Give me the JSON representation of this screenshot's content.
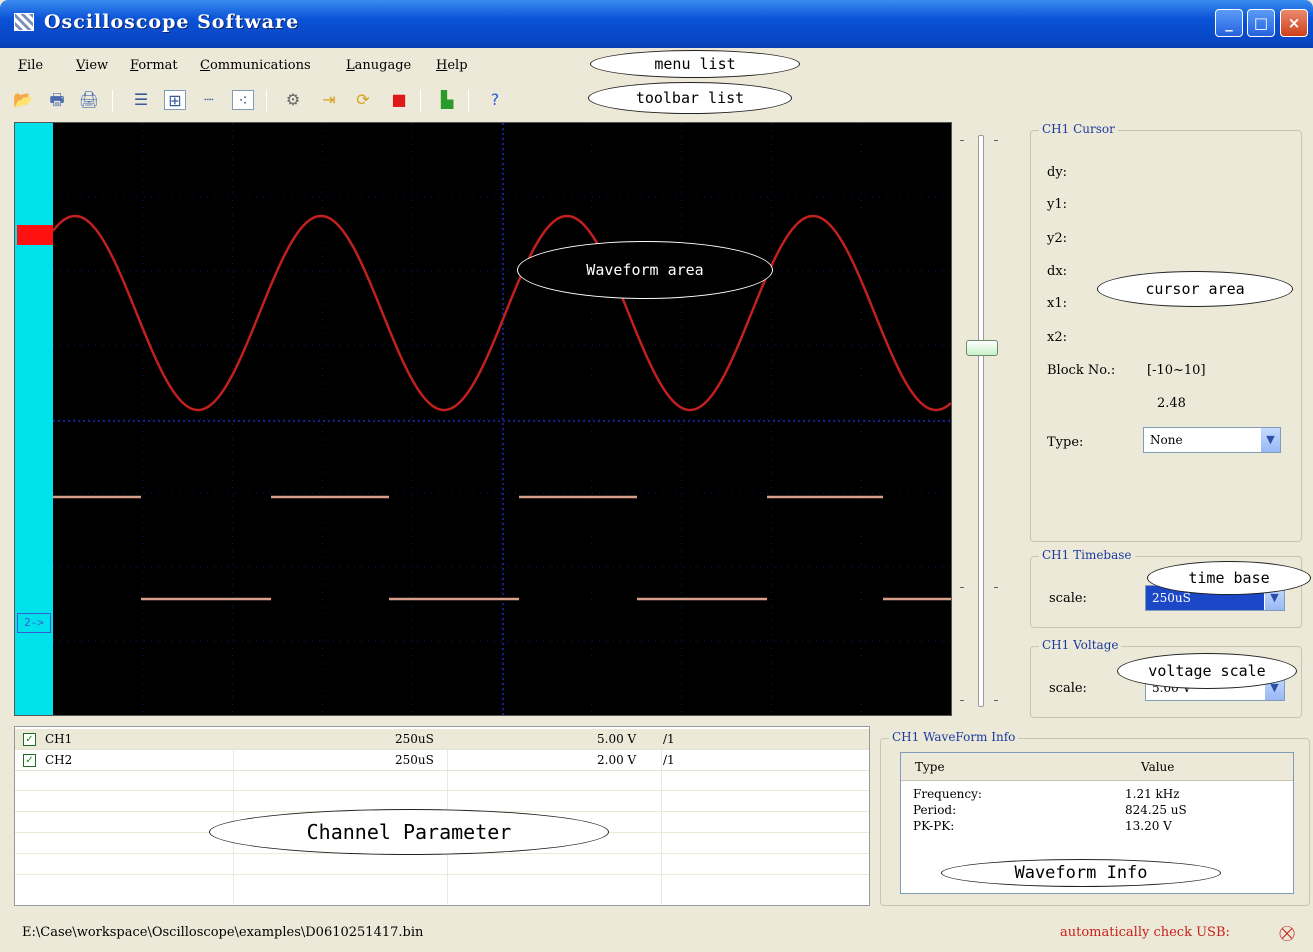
{
  "window": {
    "title": "Oscilloscope Software",
    "controls": [
      "_",
      "□",
      "×"
    ]
  },
  "menu": {
    "items": [
      "File",
      "View",
      "Format",
      "Communications",
      "Lanugage",
      "Help"
    ],
    "callout": "menu list"
  },
  "toolbar": {
    "callout": "toolbar list",
    "icons": [
      "open-icon",
      "print-icon",
      "print-preview-icon",
      "list-icon",
      "grid-icon",
      "dotted-line-icon",
      "points-icon",
      "settings-icon",
      "import-icon",
      "refresh-icon",
      "stop-icon",
      "export-icon",
      "help-icon"
    ]
  },
  "waveform": {
    "callout": "Waveform area",
    "ch2_marker": "2->",
    "ch1_color": "#c0201e",
    "ch2_color": "#d8a08a",
    "grid_color": "#1c2ab8"
  },
  "cursor": {
    "group_title": "CH1 Cursor",
    "callout": "cursor area",
    "labels": [
      "dy:",
      "y1:",
      "y2:",
      "dx:",
      "x1:",
      "x2:"
    ],
    "block_label": "Block No.:",
    "block_range": "[-10~10]",
    "block_value": "2.48",
    "type_label": "Type:",
    "type_value": "None"
  },
  "timebase": {
    "group_title": "CH1 Timebase",
    "callout": "time base",
    "scale_label": "scale:",
    "scale_value": "250uS"
  },
  "voltage": {
    "group_title": "CH1 Voltage",
    "callout": "voltage scale",
    "scale_label": "scale:",
    "scale_value": "5.00 V"
  },
  "channels": {
    "callout": "Channel Parameter",
    "rows": [
      {
        "name": "CH1",
        "timebase": "250uS",
        "volt": "5.00 V",
        "probe": "/1",
        "checked": "✓"
      },
      {
        "name": "CH2",
        "timebase": "250uS",
        "volt": "2.00 V",
        "probe": "/1",
        "checked": "✓"
      }
    ]
  },
  "waveinfo": {
    "group_title": "CH1 WaveForm Info",
    "callout": "Waveform Info",
    "col_type": "Type",
    "col_value": "Value",
    "rows": [
      {
        "type": "Frequency:",
        "value": "1.21 kHz"
      },
      {
        "type": "Period:",
        "value": "824.25 uS"
      },
      {
        "type": "PK-PK:",
        "value": "13.20 V"
      }
    ]
  },
  "status": {
    "path": "E:\\Case\\workspace\\Oscilloscope\\examples\\D0610251417.bin",
    "usb": "automatically check USB:"
  }
}
